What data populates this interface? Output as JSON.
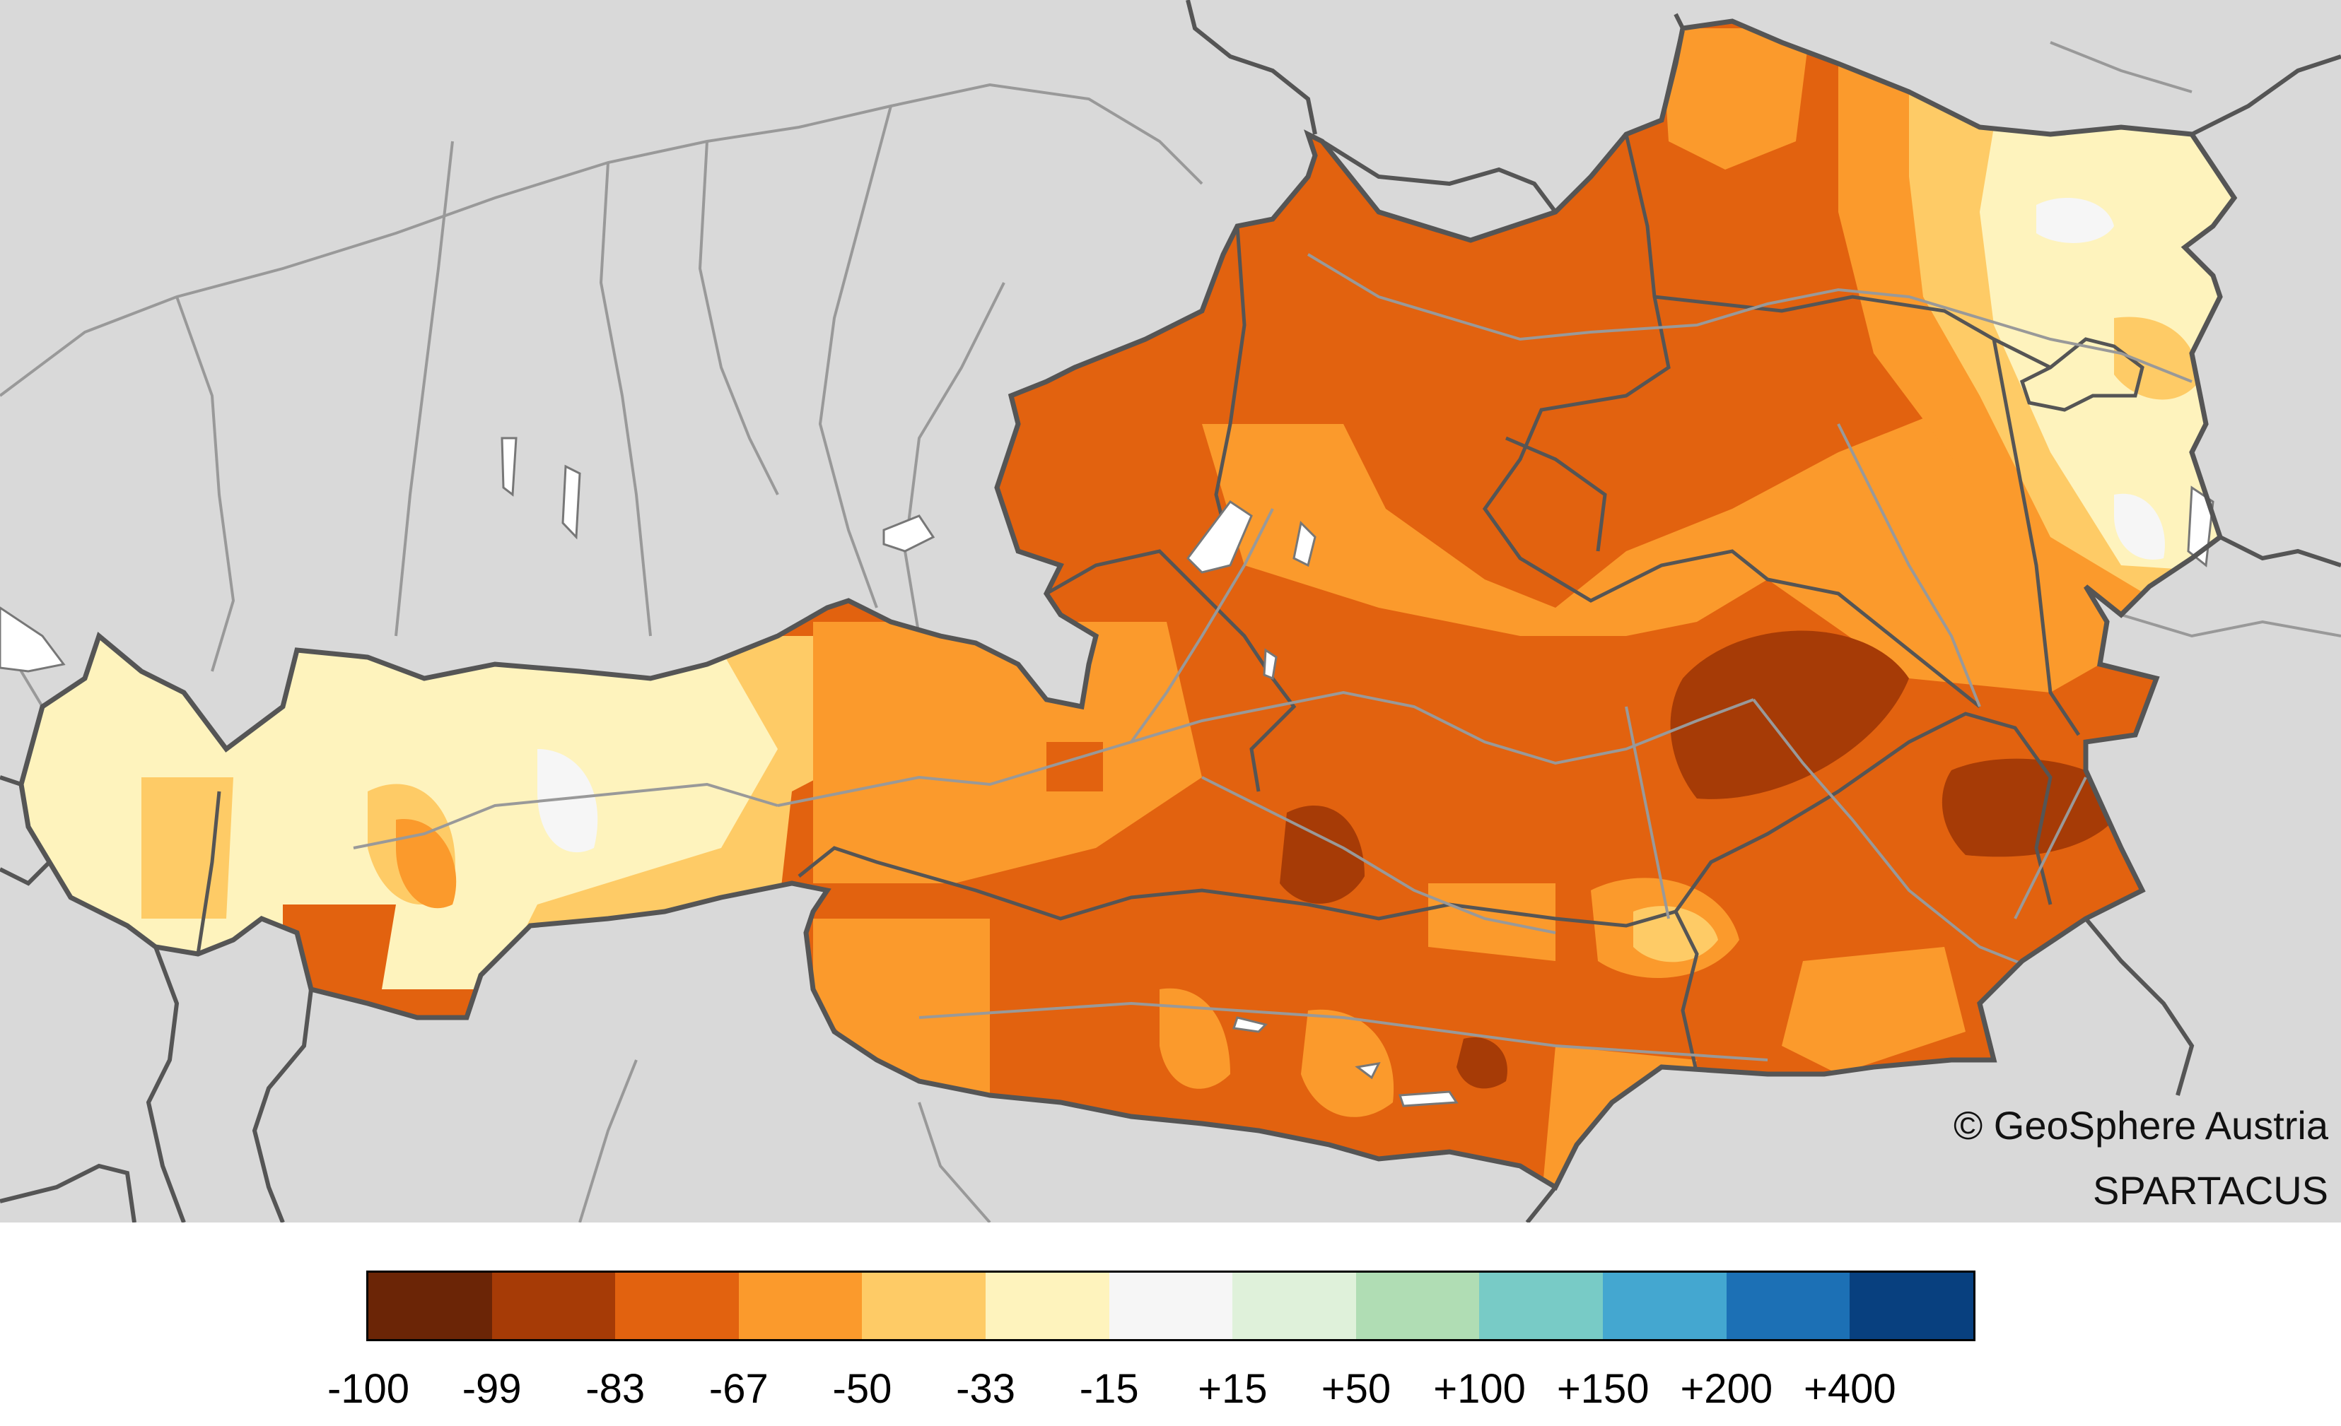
{
  "credits": {
    "line1": "© GeoSphere Austria",
    "line2": "SPARTACUS"
  },
  "legend": {
    "colors": [
      "#6b2506",
      "#a63b06",
      "#e2620f",
      "#fb9a2c",
      "#fecb66",
      "#fef3bd",
      "#f6f6f6",
      "#dff1da",
      "#b0ddb4",
      "#78cbc6",
      "#44a7d0",
      "#1c70b5",
      "#08407f"
    ],
    "labels": [
      "-100",
      "-99",
      "-83",
      "-67",
      "-50",
      "-33",
      "-15",
      "+15",
      "+50",
      "+100",
      "+150",
      "+200",
      "+400"
    ]
  },
  "map": {
    "region": "Austria",
    "background_color": "#d9d9d9",
    "border_color": "#555555",
    "river_color": "#999999"
  }
}
